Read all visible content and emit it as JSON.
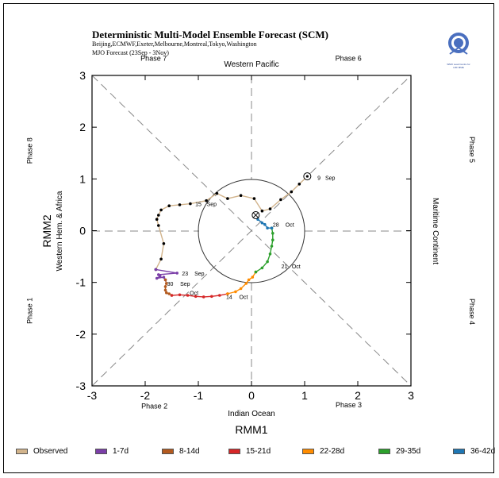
{
  "header": {
    "title": "Deterministic Multi-Model Ensemble Forecast (SCM)",
    "subtitle": "Beijing,ECMWF,Exeter,Melbourne,Montreal,Tokyo,Washington",
    "forecast_label": "MJO Forecast (23Sep - 3Nov)"
  },
  "logo": {
    "text": "WMO Lead Centre for LRF MME"
  },
  "regions": {
    "top": "Western Pacific",
    "bottom": "Indian Ocean",
    "left": "Western Hem. & Africa",
    "right": "Maritime Continent"
  },
  "phases": [
    {
      "label": "Phase 1",
      "r": 4.46,
      "deg": 200.3,
      "rotate": -90
    },
    {
      "label": "Phase 2",
      "r": 3.84,
      "deg": 241.6,
      "rotate": 0
    },
    {
      "label": "Phase 3",
      "r": 3.82,
      "deg": 298.6,
      "rotate": 0
    },
    {
      "label": "Phase 4",
      "r": 4.45,
      "deg": 339.4,
      "rotate": 90
    },
    {
      "label": "Phase 5",
      "r": 4.45,
      "deg": 20.6,
      "rotate": 90
    },
    {
      "label": "Phase 6",
      "r": 3.81,
      "deg": 61.4,
      "rotate": 0
    },
    {
      "label": "Phase 7",
      "r": 3.82,
      "deg": 118.8,
      "rotate": 0
    },
    {
      "label": "Phase 8",
      "r": 4.46,
      "deg": 159.7,
      "rotate": -90
    }
  ],
  "legend": [
    {
      "label": "Observed",
      "color": "#d2b48c"
    },
    {
      "label": "1-7d",
      "color": "#7b3fa8"
    },
    {
      "label": "8-14d",
      "color": "#b35a1f"
    },
    {
      "label": "15-21d",
      "color": "#d62728"
    },
    {
      "label": "22-28d",
      "color": "#ff8c00"
    },
    {
      "label": "29-35d",
      "color": "#2ca02c"
    },
    {
      "label": "36-42d",
      "color": "#1f77b4"
    }
  ],
  "chart_data": {
    "type": "scatter",
    "title": "Deterministic Multi-Model Ensemble Forecast (SCM)",
    "xlabel": "RMM1",
    "ylabel": "RMM2",
    "xlim": [
      -3,
      3
    ],
    "ylim": [
      -3,
      3
    ],
    "xticks": [
      -3,
      -2,
      -1,
      0,
      1,
      2,
      3
    ],
    "yticks": [
      -3,
      -2,
      -1,
      0,
      1,
      2,
      3
    ],
    "unit_circle": true,
    "grid": false,
    "legend_position": "bottom",
    "series": [
      {
        "name": "Observed",
        "color": "#d2b48c",
        "points": [
          [
            1.05,
            1.05
          ],
          [
            0.9,
            0.9
          ],
          [
            0.75,
            0.75
          ],
          [
            0.55,
            0.6
          ],
          [
            0.35,
            0.42
          ],
          [
            0.2,
            0.38
          ],
          [
            0.05,
            0.62
          ],
          [
            -0.2,
            0.68
          ],
          [
            -0.45,
            0.62
          ],
          [
            -0.65,
            0.72
          ],
          [
            -0.85,
            0.58
          ],
          [
            -1.15,
            0.52
          ],
          [
            -1.35,
            0.5
          ],
          [
            -1.55,
            0.48
          ],
          [
            -1.7,
            0.4
          ],
          [
            -1.75,
            0.3
          ],
          [
            -1.78,
            0.22
          ],
          [
            -1.75,
            0.1
          ],
          [
            -1.65,
            -0.25
          ],
          [
            -1.7,
            -0.55
          ],
          [
            -1.8,
            -0.75
          ]
        ]
      },
      {
        "name": "1-7d",
        "color": "#7b3fa8",
        "points": [
          [
            -1.8,
            -0.75
          ],
          [
            -1.4,
            -0.82
          ],
          [
            -1.75,
            -0.85
          ],
          [
            -1.72,
            -0.88
          ],
          [
            -1.78,
            -0.92
          ],
          [
            -1.65,
            -0.9
          ],
          [
            -1.62,
            -0.95
          ]
        ]
      },
      {
        "name": "8-14d",
        "color": "#b35a1f",
        "points": [
          [
            -1.62,
            -0.95
          ],
          [
            -1.6,
            -1.02
          ],
          [
            -1.62,
            -1.08
          ],
          [
            -1.62,
            -1.15
          ],
          [
            -1.6,
            -1.2
          ],
          [
            -1.55,
            -1.22
          ],
          [
            -1.5,
            -1.25
          ]
        ]
      },
      {
        "name": "15-21d",
        "color": "#d62728",
        "points": [
          [
            -1.5,
            -1.25
          ],
          [
            -1.35,
            -1.24
          ],
          [
            -1.2,
            -1.25
          ],
          [
            -1.05,
            -1.27
          ],
          [
            -0.9,
            -1.28
          ],
          [
            -0.75,
            -1.27
          ],
          [
            -0.6,
            -1.25
          ],
          [
            -0.45,
            -1.22
          ]
        ]
      },
      {
        "name": "22-28d",
        "color": "#ff8c00",
        "points": [
          [
            -0.45,
            -1.22
          ],
          [
            -0.3,
            -1.18
          ],
          [
            -0.2,
            -1.12
          ],
          [
            -0.1,
            -1.02
          ],
          [
            -0.05,
            -0.95
          ],
          [
            0.02,
            -0.9
          ],
          [
            0.08,
            -0.8
          ]
        ]
      },
      {
        "name": "29-35d",
        "color": "#2ca02c",
        "points": [
          [
            0.08,
            -0.8
          ],
          [
            0.2,
            -0.72
          ],
          [
            0.3,
            -0.6
          ],
          [
            0.35,
            -0.45
          ],
          [
            0.38,
            -0.3
          ],
          [
            0.4,
            -0.18
          ],
          [
            0.4,
            -0.05
          ],
          [
            0.38,
            0.05
          ]
        ]
      },
      {
        "name": "36-42d",
        "color": "#1f77b4",
        "points": [
          [
            0.38,
            0.05
          ],
          [
            0.3,
            0.05
          ],
          [
            0.25,
            0.12
          ],
          [
            0.2,
            0.15
          ],
          [
            0.12,
            0.22
          ],
          [
            0.08,
            0.3
          ]
        ]
      }
    ],
    "start_marker": [
      1.05,
      1.05
    ],
    "end_marker": [
      0.08,
      0.3
    ],
    "annotations": [
      {
        "text": "9",
        "x": 1.27,
        "y": 1.03
      },
      {
        "text": "Sep",
        "x": 1.48,
        "y": 1.03
      },
      {
        "text": "15",
        "x": -1.0,
        "y": 0.52
      },
      {
        "text": "Sep",
        "x": -0.75,
        "y": 0.52
      },
      {
        "text": "28",
        "x": 0.46,
        "y": 0.12
      },
      {
        "text": "Oct",
        "x": 0.72,
        "y": 0.12
      },
      {
        "text": "21",
        "x": 0.62,
        "y": -0.68
      },
      {
        "text": "Oct",
        "x": 0.84,
        "y": -0.68
      },
      {
        "text": "23",
        "x": -1.25,
        "y": -0.82
      },
      {
        "text": "Sep",
        "x": -0.98,
        "y": -0.82
      },
      {
        "text": "30",
        "x": -1.53,
        "y": -1.02
      },
      {
        "text": "Sep",
        "x": -1.25,
        "y": -1.02
      },
      {
        "text": "Oct",
        "x": -1.08,
        "y": -1.2
      },
      {
        "text": "14",
        "x": -0.42,
        "y": -1.27
      },
      {
        "text": "Oct",
        "x": -0.15,
        "y": -1.27
      }
    ]
  }
}
